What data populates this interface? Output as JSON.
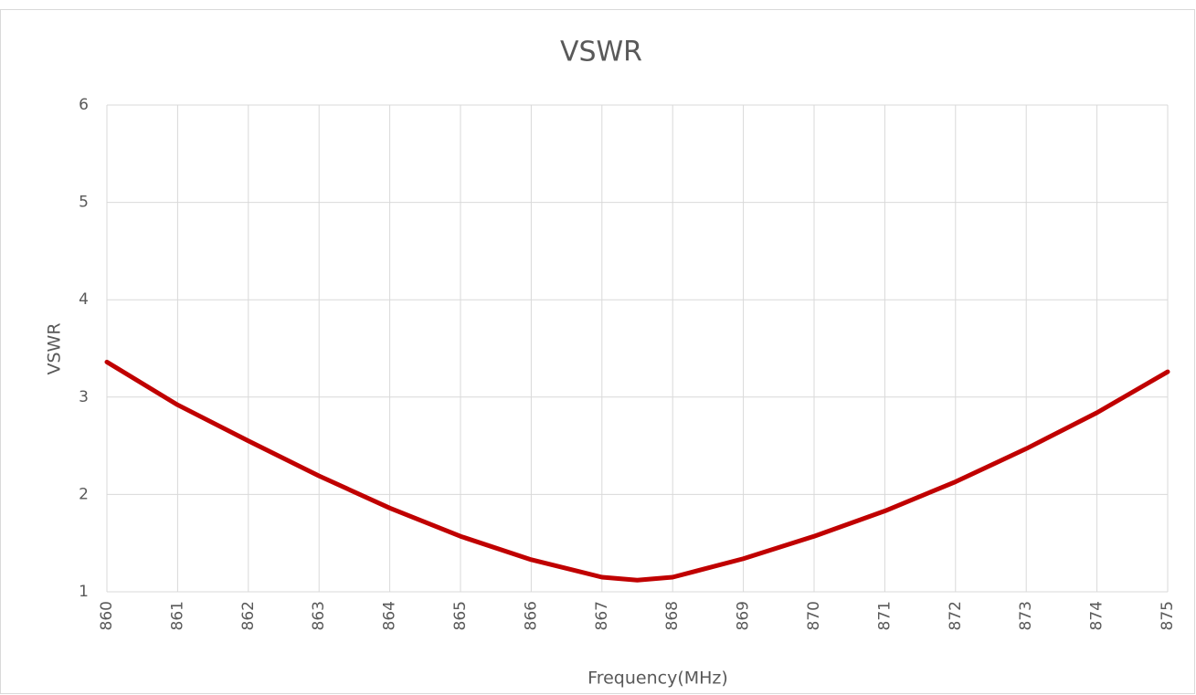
{
  "chart_data": {
    "type": "line",
    "title": "VSWR",
    "x_label": "Frequency(MHz)",
    "y_label": "VSWR",
    "x": [
      860,
      861,
      862,
      863,
      864,
      865,
      866,
      867,
      867.5,
      868,
      869,
      870,
      871,
      872,
      873,
      874,
      875
    ],
    "values": [
      3.36,
      2.92,
      2.55,
      2.19,
      1.86,
      1.57,
      1.33,
      1.15,
      1.12,
      1.15,
      1.34,
      1.57,
      1.83,
      2.13,
      2.47,
      2.84,
      3.26
    ],
    "color": "#c00000",
    "xlim": [
      860,
      875
    ],
    "xticks": [
      860,
      861,
      862,
      863,
      864,
      865,
      866,
      867,
      868,
      869,
      870,
      871,
      872,
      873,
      874,
      875
    ],
    "ylim": [
      1,
      6
    ],
    "yticks": [
      1,
      2,
      3,
      4,
      5,
      6
    ],
    "grid": true
  }
}
